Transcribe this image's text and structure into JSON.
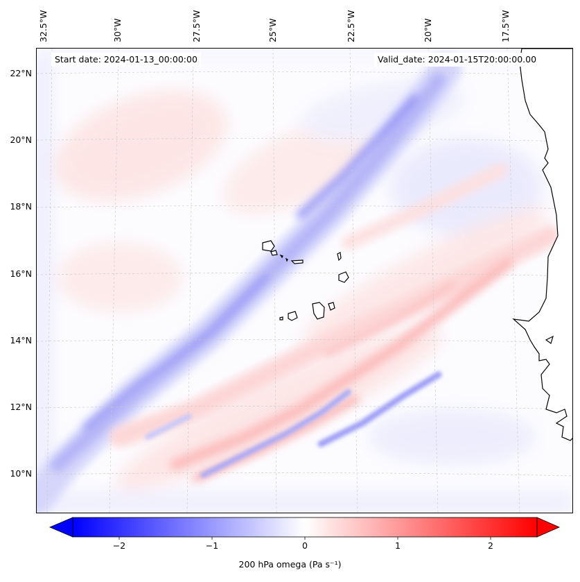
{
  "map": {
    "start_date": "Start date: 2024-01-13_00:00:00",
    "valid_date": "Valid_date: 2024-01-15T20:00:00.00",
    "longitude_labels": [
      "32.5°W",
      "30°W",
      "27.5°W",
      "25°W",
      "22.5°W",
      "20°W",
      "17.5°W"
    ],
    "latitude_labels": [
      "22°N",
      "20°N",
      "18°N",
      "16°N",
      "14°N",
      "12°N",
      "10°N"
    ],
    "region": {
      "lon_range": [
        -33,
        -16.5
      ],
      "lat_range": [
        8.8,
        22.8
      ]
    },
    "colors": {
      "negative": "#0000ff",
      "positive": "#ff0000",
      "neutral": "#ffffff",
      "land_outline": "#000000"
    }
  },
  "colorbar": {
    "label": "200 hPa omega (Pa s⁻¹)",
    "ticks": [
      "−2",
      "−1",
      "0",
      "1",
      "2"
    ],
    "range": [
      -2.7,
      2.7
    ],
    "extend": "both"
  }
}
